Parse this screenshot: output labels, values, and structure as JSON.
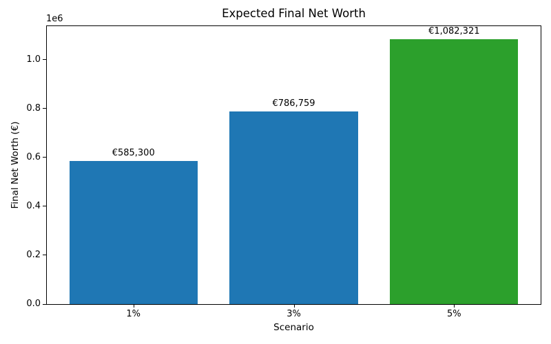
{
  "chart_data": {
    "type": "bar",
    "title": "Expected Final Net Worth",
    "xlabel": "Scenario",
    "ylabel": "Final Net Worth (€)",
    "categories": [
      "1%",
      "3%",
      "5%"
    ],
    "values": [
      585300,
      786759,
      1082321
    ],
    "bar_labels": [
      "€585,300",
      "€786,759",
      "€1,082,321"
    ],
    "bar_colors": [
      "#1f77b4",
      "#1f77b4",
      "#2ca02c"
    ],
    "ylim": [
      0,
      1136437
    ],
    "yticks": [
      0,
      200000,
      400000,
      600000,
      800000,
      1000000
    ],
    "ytick_labels": [
      "0.0",
      "0.2",
      "0.4",
      "0.6",
      "0.8",
      "1.0"
    ],
    "y_offset_text": "1e6",
    "bar_width_fraction": 0.8,
    "x_margin_fraction": 0.05,
    "grid": false,
    "legend_position": "none"
  }
}
